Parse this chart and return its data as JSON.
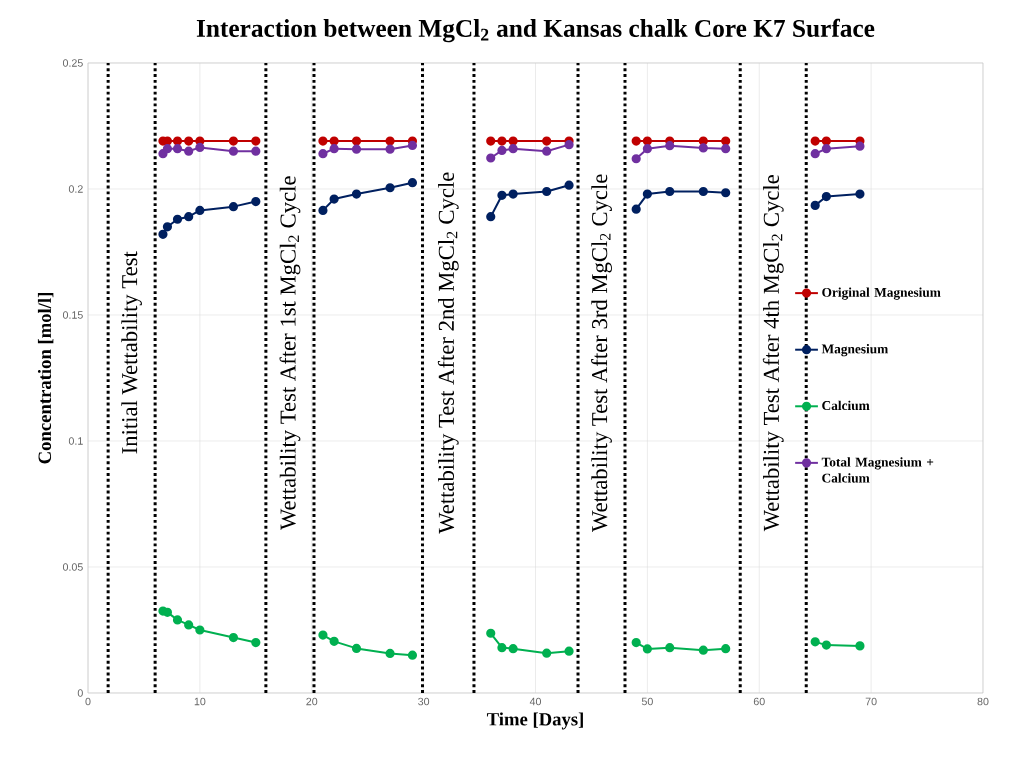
{
  "chart_data": {
    "type": "line",
    "title": "Interaction between MgCl$_{2}$ and Kansas chalk Core K7 Surface",
    "xlabel": "Time [Days]",
    "ylabel": "Concentration [mol/l]",
    "x": [
      6.7,
      7.1,
      8,
      9,
      10,
      13,
      15,
      null,
      21,
      22,
      24,
      27,
      29,
      null,
      36,
      37,
      38,
      41,
      43,
      null,
      49,
      50,
      52,
      55,
      57,
      null,
      65,
      66,
      69
    ],
    "series": [
      {
        "name": "Original Magnesium",
        "color": "#c00000",
        "values": [
          0.219,
          0.219,
          0.219,
          0.219,
          0.219,
          0.219,
          0.219,
          null,
          0.219,
          0.219,
          0.219,
          0.219,
          0.219,
          null,
          0.219,
          0.219,
          0.219,
          0.219,
          0.219,
          null,
          0.219,
          0.219,
          0.219,
          0.219,
          0.219,
          null,
          0.219,
          0.219,
          0.219
        ]
      },
      {
        "name": "Magnesium",
        "color": "#002060",
        "values": [
          0.182,
          0.185,
          0.188,
          0.189,
          0.1915,
          0.193,
          0.195,
          null,
          0.1915,
          0.196,
          0.198,
          0.2005,
          0.2025,
          null,
          0.189,
          0.1975,
          0.198,
          0.199,
          0.2015,
          null,
          0.192,
          0.198,
          0.199,
          0.199,
          0.1985,
          null,
          0.1935,
          0.197,
          0.198
        ]
      },
      {
        "name": "Calcium",
        "color": "#00b050",
        "values": [
          0.0325,
          0.032,
          0.029,
          0.027,
          0.025,
          0.022,
          0.02,
          null,
          0.023,
          0.0205,
          0.0177,
          0.0157,
          0.015,
          null,
          0.0237,
          0.018,
          0.0176,
          0.0158,
          0.0166,
          null,
          0.02,
          0.0175,
          0.018,
          0.017,
          0.0176,
          null,
          0.0203,
          0.019,
          0.0187
        ]
      },
      {
        "name": "Total Magnesium + Calcium",
        "color": "#7030a0",
        "values": [
          0.214,
          0.216,
          0.216,
          0.215,
          0.2165,
          0.215,
          0.215,
          null,
          0.214,
          0.216,
          0.2158,
          0.2158,
          0.2173,
          null,
          0.2123,
          0.2153,
          0.216,
          0.215,
          0.2176,
          null,
          0.212,
          0.216,
          0.2172,
          0.2163,
          0.216,
          null,
          0.214,
          0.216,
          0.217
        ]
      }
    ],
    "ref_lines": [
      {
        "axis": "x",
        "value": 1.8,
        "line_style": "dotted"
      },
      {
        "axis": "x",
        "value": 6.0,
        "line_style": "dotted"
      },
      {
        "axis": "x",
        "value": 15.9,
        "line_style": "dotted"
      },
      {
        "axis": "x",
        "value": 20.2,
        "line_style": "dotted"
      },
      {
        "axis": "x",
        "value": 29.9,
        "line_style": "dotted"
      },
      {
        "axis": "x",
        "value": 34.5,
        "line_style": "dotted"
      },
      {
        "axis": "x",
        "value": 43.8,
        "line_style": "dotted"
      },
      {
        "axis": "x",
        "value": 48.0,
        "line_style": "dotted"
      },
      {
        "axis": "x",
        "value": 58.3,
        "line_style": "dotted"
      },
      {
        "axis": "x",
        "value": 64.2,
        "line_style": "dotted"
      }
    ],
    "annotations": [
      "Initial Wettability Test",
      "Wettability Test After 1st MgCl$_{2}$ Cycle",
      "Wettability Test After 2nd MgCl$_{2}$ Cycle",
      "Wettability Test After 3rd MgCl$_{2}$ Cycle",
      "Wettability Test After 4th MgCl$_{2}$ Cycle"
    ],
    "xlim": [
      0,
      80
    ],
    "xticks": [
      0,
      10,
      20,
      30,
      40,
      50,
      60,
      70,
      80
    ],
    "ylim": [
      0,
      0.25
    ],
    "yticks": [
      0,
      0.05,
      0.1,
      0.15,
      0.2,
      0.25
    ],
    "grid": true,
    "legend": "right",
    "marker": "circle",
    "line_style": "solid"
  }
}
